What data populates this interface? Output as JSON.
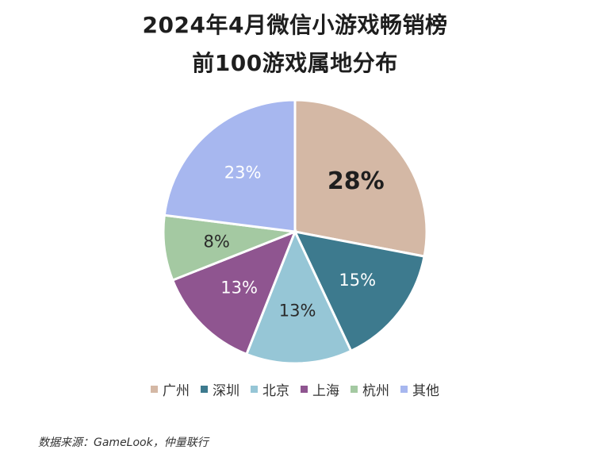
{
  "title_line1": "2024年4月微信小游戏畅销榜",
  "title_line2": "前100游戏属地分布",
  "source": "数据来源：GameLook，仲量联行",
  "chart_data": {
    "type": "pie",
    "title": "2024年4月微信小游戏畅销榜 前100游戏属地分布",
    "legend_position": "bottom",
    "slices": [
      {
        "label": "广州",
        "value": 28,
        "display": "28%",
        "color": "#d4b8a5"
      },
      {
        "label": "深圳",
        "value": 15,
        "display": "15%",
        "color": "#3d7a8e"
      },
      {
        "label": "北京",
        "value": 13,
        "display": "13%",
        "color": "#96c6d6"
      },
      {
        "label": "上海",
        "value": 13,
        "display": "13%",
        "color": "#8f5590"
      },
      {
        "label": "杭州",
        "value": 8,
        "display": "8%",
        "color": "#a4c9a2"
      },
      {
        "label": "其他",
        "value": 23,
        "display": "23%",
        "color": "#a7b7ef"
      }
    ]
  }
}
